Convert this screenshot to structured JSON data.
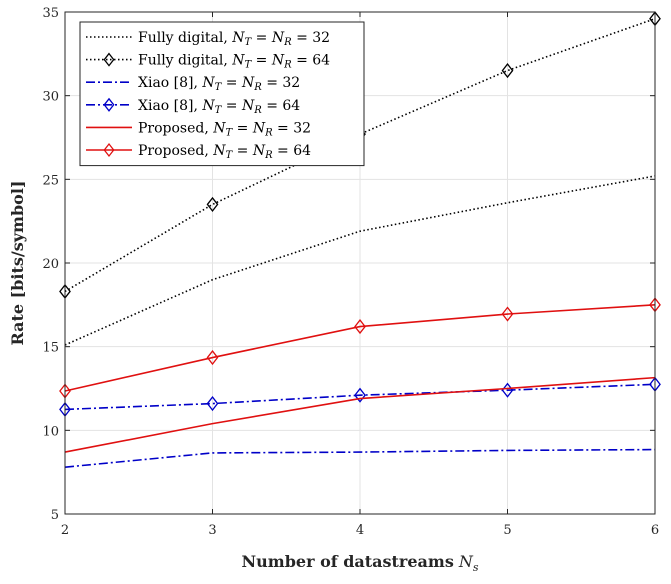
{
  "chart_data": {
    "type": "line",
    "title": "",
    "xlabel": "Number of datastreams",
    "xlabel_symbol": "N",
    "xlabel_symbol_sub": "s",
    "ylabel": "Rate [bits/symbol]",
    "xlim": [
      2,
      6
    ],
    "ylim": [
      5,
      35
    ],
    "xticks": [
      "2",
      "3",
      "4",
      "5",
      "6"
    ],
    "yticks": [
      "5",
      "10",
      "15",
      "20",
      "25",
      "30",
      "35"
    ],
    "grid": true,
    "legend_position": "top-left",
    "x": [
      2,
      3,
      4,
      5,
      6
    ],
    "series": [
      {
        "name": "Fully digital, N_T = N_R = 32",
        "legend_prefix": "Fully digital, ",
        "nval": "32",
        "values": [
          15.1,
          19.0,
          21.9,
          23.6,
          25.2
        ],
        "color": "#000000",
        "dash": "1.5,2.5",
        "marker": "none"
      },
      {
        "name": "Fully digital, N_T = N_R = 64",
        "legend_prefix": "Fully digital, ",
        "nval": "64",
        "values": [
          18.3,
          23.5,
          27.7,
          31.5,
          34.6
        ],
        "color": "#000000",
        "dash": "1.5,2.5",
        "marker": "diamond"
      },
      {
        "name": "Xiao [8], N_T = N_R = 32",
        "legend_prefix": "Xiao [8], ",
        "nval": "32",
        "values": [
          7.8,
          8.65,
          8.7,
          8.8,
          8.85
        ],
        "color": "#0000c8",
        "dash": "9,3,2,3",
        "marker": "none"
      },
      {
        "name": "Xiao [8], N_T = N_R = 64",
        "legend_prefix": "Xiao [8], ",
        "nval": "64",
        "values": [
          11.25,
          11.6,
          12.1,
          12.4,
          12.75
        ],
        "color": "#0000c8",
        "dash": "9,3,2,3",
        "marker": "diamond"
      },
      {
        "name": "Proposed, N_T = N_R = 32",
        "legend_prefix": "Proposed, ",
        "nval": "32",
        "values": [
          8.7,
          10.4,
          11.9,
          12.5,
          13.15
        ],
        "color": "#e01010",
        "dash": "",
        "marker": "none"
      },
      {
        "name": "Proposed, N_T = N_R = 64",
        "legend_prefix": "Proposed, ",
        "nval": "64",
        "values": [
          12.35,
          14.35,
          16.2,
          16.95,
          17.5
        ],
        "color": "#e01010",
        "dash": "",
        "marker": "diamond"
      }
    ]
  }
}
